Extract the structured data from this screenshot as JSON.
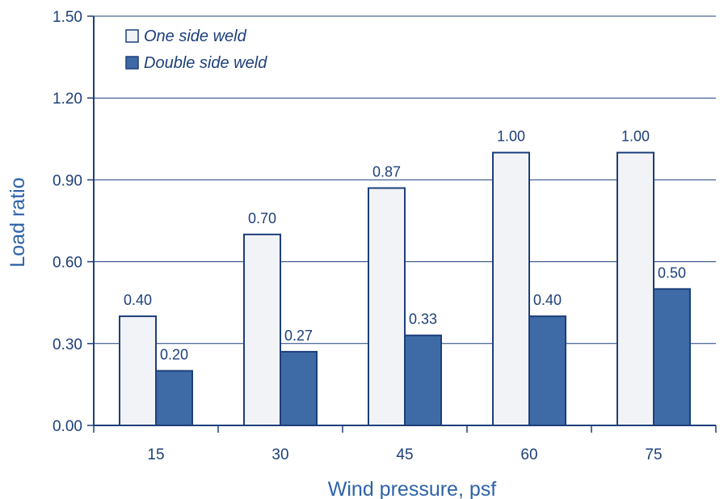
{
  "chart_data": {
    "type": "bar",
    "categories": [
      "15",
      "30",
      "45",
      "60",
      "75"
    ],
    "series": [
      {
        "name": "One side weld",
        "values": [
          0.4,
          0.7,
          0.87,
          1.0,
          1.0
        ],
        "labels": [
          "0.40",
          "0.70",
          "0.87",
          "1.00",
          "1.00"
        ],
        "color": "#f2f3f6"
      },
      {
        "name": "Double side weld",
        "values": [
          0.2,
          0.27,
          0.33,
          0.4,
          0.5
        ],
        "labels": [
          "0.20",
          "0.27",
          "0.33",
          "0.40",
          "0.50"
        ],
        "color": "#3e6ba6"
      }
    ],
    "xlabel": "Wind pressure, psf",
    "ylabel": "Load ratio",
    "ylim": [
      0,
      1.5
    ],
    "yticks": [
      "0.00",
      "0.30",
      "0.60",
      "0.90",
      "1.20",
      "1.50"
    ],
    "ytick_values": [
      0,
      0.3,
      0.6,
      0.9,
      1.2,
      1.5
    ],
    "grid": true,
    "legend_position": "top-left",
    "colors": {
      "axis": "#1d3f7a",
      "grid": "#1d3f7a",
      "text": "#1d3f7a",
      "axis_title": "#2e63a8"
    }
  }
}
